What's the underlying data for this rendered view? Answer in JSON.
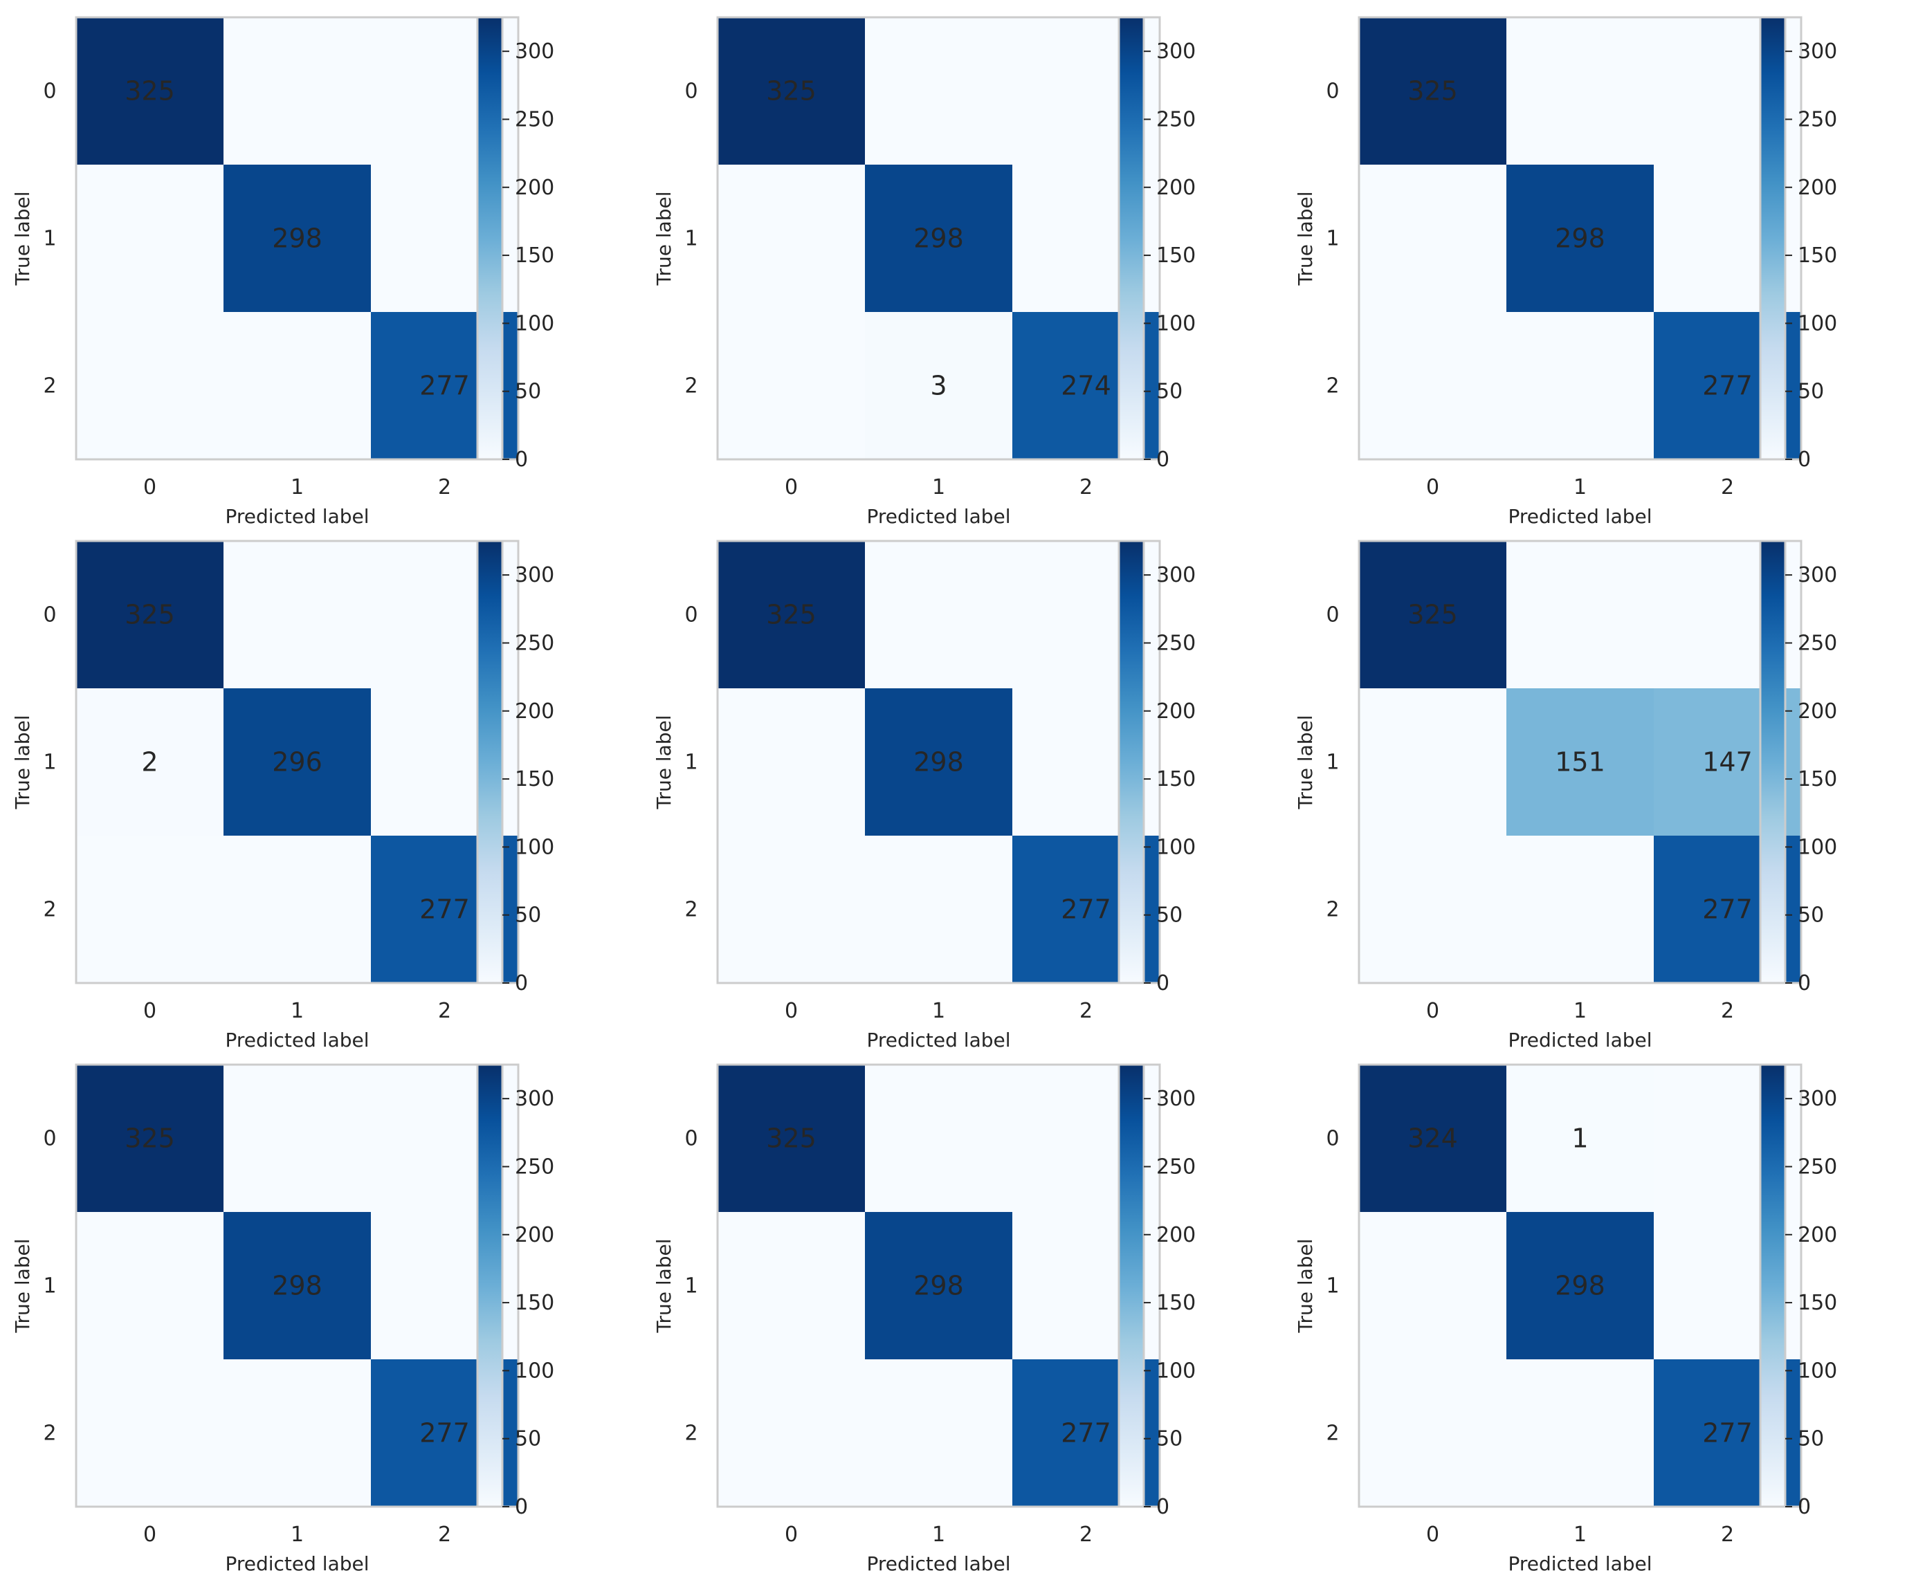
{
  "colormap": "Blues",
  "colors": {
    "low": "#f7fbff",
    "high": "#08306b",
    "text_dark": "#262626",
    "text_light": "#ffffff",
    "frame": "#cccccc"
  },
  "chart_data": [
    {
      "type": "heatmap",
      "xlabel": "Predicted label",
      "ylabel": "True label",
      "x_tick_labels": [
        "0",
        "1",
        "2"
      ],
      "y_tick_labels": [
        "0",
        "1",
        "2"
      ],
      "colorbar_ticks": [
        0,
        50,
        100,
        150,
        200,
        250,
        300
      ],
      "colorbar_range": [
        0,
        325
      ],
      "matrix": [
        [
          325,
          0,
          0
        ],
        [
          0,
          298,
          0
        ],
        [
          0,
          0,
          277
        ]
      ],
      "cell_labels": [
        [
          "325",
          "",
          ""
        ],
        [
          "",
          "298",
          ""
        ],
        [
          "",
          "",
          "277"
        ]
      ]
    },
    {
      "type": "heatmap",
      "xlabel": "Predicted label",
      "ylabel": "True label",
      "x_tick_labels": [
        "0",
        "1",
        "2"
      ],
      "y_tick_labels": [
        "0",
        "1",
        "2"
      ],
      "colorbar_ticks": [
        0,
        50,
        100,
        150,
        200,
        250,
        300
      ],
      "colorbar_range": [
        0,
        325
      ],
      "matrix": [
        [
          325,
          0,
          0
        ],
        [
          0,
          298,
          0
        ],
        [
          0,
          3,
          274
        ]
      ],
      "cell_labels": [
        [
          "325",
          "",
          ""
        ],
        [
          "",
          "298",
          ""
        ],
        [
          "",
          "3",
          "274"
        ]
      ]
    },
    {
      "type": "heatmap",
      "xlabel": "Predicted label",
      "ylabel": "True label",
      "x_tick_labels": [
        "0",
        "1",
        "2"
      ],
      "y_tick_labels": [
        "0",
        "1",
        "2"
      ],
      "colorbar_ticks": [
        0,
        50,
        100,
        150,
        200,
        250,
        300
      ],
      "colorbar_range": [
        0,
        325
      ],
      "matrix": [
        [
          325,
          0,
          0
        ],
        [
          0,
          298,
          0
        ],
        [
          0,
          0,
          277
        ]
      ],
      "cell_labels": [
        [
          "325",
          "",
          ""
        ],
        [
          "",
          "298",
          ""
        ],
        [
          "",
          "",
          "277"
        ]
      ]
    },
    {
      "type": "heatmap",
      "xlabel": "Predicted label",
      "ylabel": "True label",
      "x_tick_labels": [
        "0",
        "1",
        "2"
      ],
      "y_tick_labels": [
        "0",
        "1",
        "2"
      ],
      "colorbar_ticks": [
        0,
        50,
        100,
        150,
        200,
        250,
        300
      ],
      "colorbar_range": [
        0,
        325
      ],
      "matrix": [
        [
          325,
          0,
          0
        ],
        [
          2,
          296,
          0
        ],
        [
          0,
          0,
          277
        ]
      ],
      "cell_labels": [
        [
          "325",
          "",
          ""
        ],
        [
          "2",
          "296",
          ""
        ],
        [
          "",
          "",
          "277"
        ]
      ]
    },
    {
      "type": "heatmap",
      "xlabel": "Predicted label",
      "ylabel": "True label",
      "x_tick_labels": [
        "0",
        "1",
        "2"
      ],
      "y_tick_labels": [
        "0",
        "1",
        "2"
      ],
      "colorbar_ticks": [
        0,
        50,
        100,
        150,
        200,
        250,
        300
      ],
      "colorbar_range": [
        0,
        325
      ],
      "matrix": [
        [
          325,
          0,
          0
        ],
        [
          0,
          298,
          0
        ],
        [
          0,
          0,
          277
        ]
      ],
      "cell_labels": [
        [
          "325",
          "",
          ""
        ],
        [
          "",
          "298",
          ""
        ],
        [
          "",
          "",
          "277"
        ]
      ]
    },
    {
      "type": "heatmap",
      "xlabel": "Predicted label",
      "ylabel": "True label",
      "x_tick_labels": [
        "0",
        "1",
        "2"
      ],
      "y_tick_labels": [
        "0",
        "1",
        "2"
      ],
      "colorbar_ticks": [
        0,
        50,
        100,
        150,
        200,
        250,
        300
      ],
      "colorbar_range": [
        0,
        325
      ],
      "matrix": [
        [
          325,
          0,
          0
        ],
        [
          0,
          151,
          147
        ],
        [
          0,
          0,
          277
        ]
      ],
      "cell_labels": [
        [
          "325",
          "",
          ""
        ],
        [
          "",
          "151",
          "147"
        ],
        [
          "",
          "",
          "277"
        ]
      ]
    },
    {
      "type": "heatmap",
      "xlabel": "Predicted label",
      "ylabel": "True label",
      "x_tick_labels": [
        "0",
        "1",
        "2"
      ],
      "y_tick_labels": [
        "0",
        "1",
        "2"
      ],
      "colorbar_ticks": [
        0,
        50,
        100,
        150,
        200,
        250,
        300
      ],
      "colorbar_range": [
        0,
        325
      ],
      "matrix": [
        [
          325,
          0,
          0
        ],
        [
          0,
          298,
          0
        ],
        [
          0,
          0,
          277
        ]
      ],
      "cell_labels": [
        [
          "325",
          "",
          ""
        ],
        [
          "",
          "298",
          ""
        ],
        [
          "",
          "",
          "277"
        ]
      ]
    },
    {
      "type": "heatmap",
      "xlabel": "Predicted label",
      "ylabel": "True label",
      "x_tick_labels": [
        "0",
        "1",
        "2"
      ],
      "y_tick_labels": [
        "0",
        "1",
        "2"
      ],
      "colorbar_ticks": [
        0,
        50,
        100,
        150,
        200,
        250,
        300
      ],
      "colorbar_range": [
        0,
        325
      ],
      "matrix": [
        [
          325,
          0,
          0
        ],
        [
          0,
          298,
          0
        ],
        [
          0,
          0,
          277
        ]
      ],
      "cell_labels": [
        [
          "325",
          "",
          ""
        ],
        [
          "",
          "298",
          ""
        ],
        [
          "",
          "",
          "277"
        ]
      ]
    },
    {
      "type": "heatmap",
      "xlabel": "Predicted label",
      "ylabel": "True label",
      "x_tick_labels": [
        "0",
        "1",
        "2"
      ],
      "y_tick_labels": [
        "0",
        "1",
        "2"
      ],
      "colorbar_ticks": [
        0,
        50,
        100,
        150,
        200,
        250,
        300
      ],
      "colorbar_range": [
        0,
        325
      ],
      "matrix": [
        [
          324,
          1,
          0
        ],
        [
          0,
          298,
          0
        ],
        [
          0,
          0,
          277
        ]
      ],
      "cell_labels": [
        [
          "324",
          "1",
          ""
        ],
        [
          "",
          "298",
          ""
        ],
        [
          "",
          "",
          "277"
        ]
      ]
    }
  ]
}
